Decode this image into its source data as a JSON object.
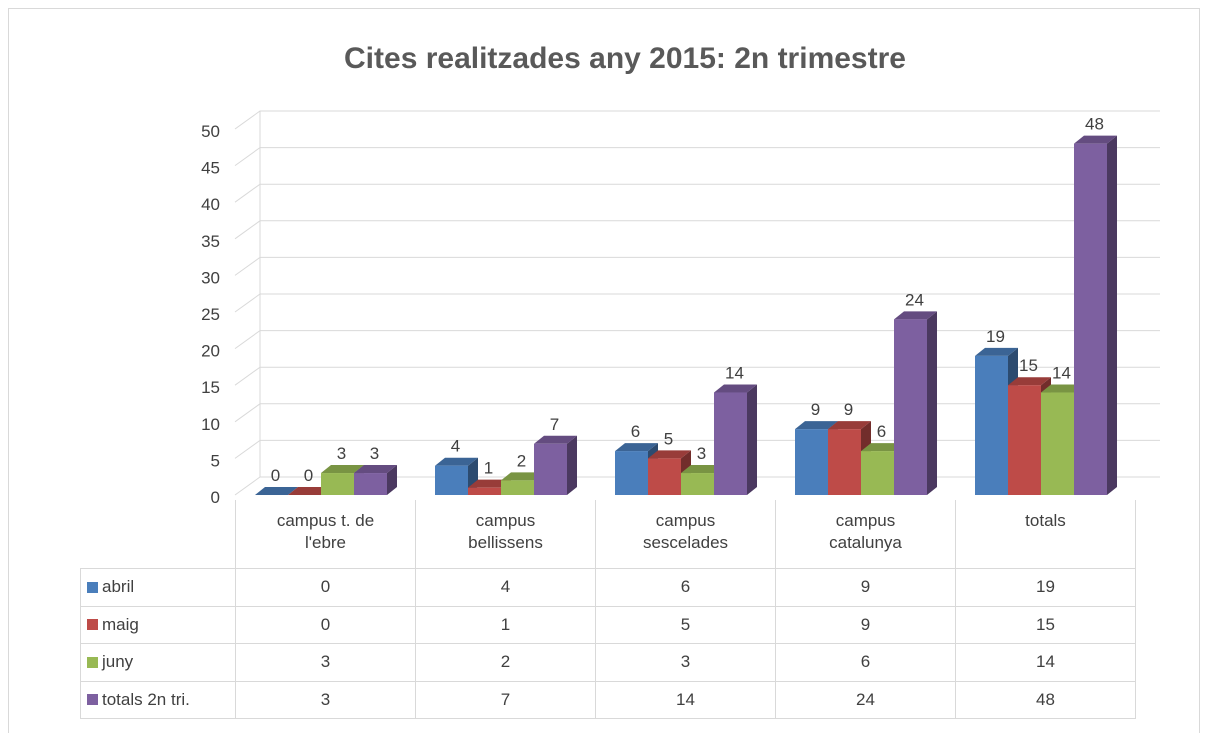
{
  "chart_data": {
    "type": "bar3d",
    "title": "Cites realitzades any 2015: 2n trimestre",
    "categories": [
      "campus t. de l'ebre",
      "campus bellissens",
      "campus sescelades",
      "campus catalunya",
      "totals"
    ],
    "series": [
      {
        "name": "abril",
        "color": "#4a7ebb",
        "values": [
          0,
          4,
          6,
          9,
          19
        ]
      },
      {
        "name": "maig",
        "color": "#be4b48",
        "values": [
          0,
          1,
          5,
          9,
          15
        ]
      },
      {
        "name": "juny",
        "color": "#98b954",
        "values": [
          3,
          2,
          3,
          6,
          14
        ]
      },
      {
        "name": "totals 2n tri.",
        "color": "#7d60a0",
        "values": [
          3,
          7,
          14,
          24,
          48
        ]
      }
    ],
    "ylim": [
      0,
      50
    ],
    "yticks": [
      0,
      5,
      10,
      15,
      20,
      25,
      30,
      35,
      40,
      45,
      50
    ],
    "grid": true,
    "data_table": true
  }
}
